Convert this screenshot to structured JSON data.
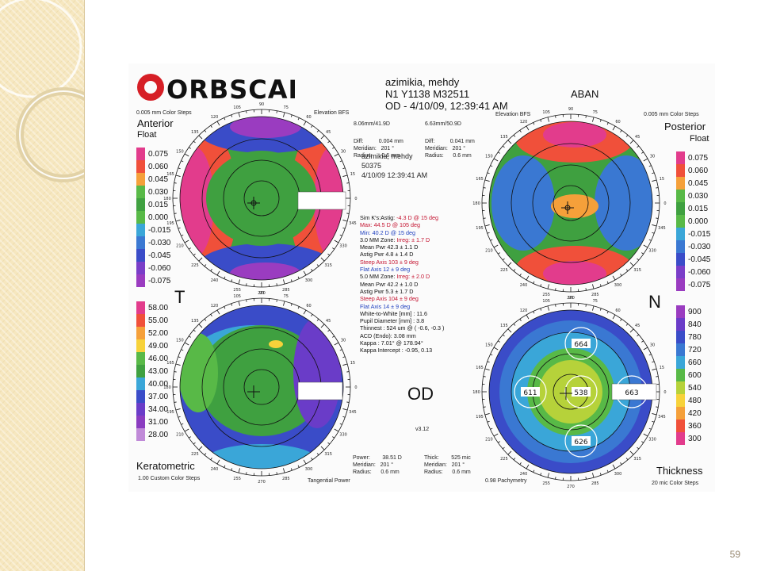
{
  "slide": {
    "page_number": "59"
  },
  "logo": {
    "text": "ORBSCAN"
  },
  "header": {
    "patient_name": "azimikia, mehdy",
    "ids": "N1 Y1138 M32511",
    "exam": "OD - 4/10/09, 12:39:41 AM",
    "site": "ABAN"
  },
  "anterior": {
    "steps": "0.005 mm Color Steps",
    "ref": "Elevation BFS",
    "title": "Anterior",
    "subtitle": "Float",
    "bfs": "8.06mm/41.9D",
    "diff": "Diff:          0.004 mm\nMeridian:   201 °\nRadius:      0.6 mm"
  },
  "posterior": {
    "steps": "0.005 mm Color Steps",
    "ref": "Elevation BFS",
    "title": "Posterior",
    "subtitle": "Float",
    "bfs": "6.63mm/50.9D",
    "diff": "Diff:          0.041 mm\nMeridian:   201 °\nRadius:      0.6 mm"
  },
  "keratometric": {
    "title": "Keratometric",
    "steps": "1.00 Custom Color Steps",
    "map": "Tangential Power",
    "readout": "Power:        38.51 D\nMeridian:   201 °\nRadius:      0.6 mm"
  },
  "thickness": {
    "title": "Thickness",
    "steps": "20 mic Color Steps",
    "map": "0.98 Pachymetry",
    "readout": "Thick:        525 mic\nMeridian:   201 °\nRadius:      0.6 mm",
    "points": {
      "top": "664",
      "left": "611",
      "center": "538",
      "right": "663",
      "bottom": "626"
    }
  },
  "patient_block": {
    "name": "azimikia, mehdy",
    "id": "50375",
    "date": "4/10/09 12:39:41 AM"
  },
  "sim_k": {
    "astig_label": "Sim K's:Astig:",
    "astig": "-4.3 D  @ 15 deg",
    "max_label": "Max:",
    "max": "44.5 D  @ 105 deg",
    "min_label": "Min:",
    "min": "40.2 D  @ 15 deg"
  },
  "zone3": {
    "label": "3.0 MM Zone:",
    "irreg": "Irreg:   ± 1.7 D",
    "mean": "Mean Pwr        42.3    ± 1.1 D",
    "astig": "Astig Pwr         4.8     ± 1.4 D",
    "steep": "Steep Axis        103     ± 9 deg",
    "flat": "Flat Axis          12      ± 9 deg"
  },
  "zone5": {
    "label": "5.0 MM Zone:",
    "irreg": "Irreg:   ± 2.0 D",
    "mean": "Mean Pwr        42.2    ± 1.0 D",
    "astig": "Astig Pwr         5.3     ± 1.7 D",
    "steep": "Steep Axis        104     ± 9 deg",
    "flat": "Flat Axis          14      ± 9 deg"
  },
  "measures": [
    "White-to-White [mm] : 11.6",
    "Pupil Diameter [mm] : 3.8",
    "Thinnest : 524 um @ ( -0.6, -0.3 )",
    "ACD (Endo): 3.08 mm",
    "Kappa : 7.01° @ 178.94°",
    "Kappa Intercept : -0.95, 0.13"
  ],
  "labels": {
    "temporal": "T",
    "nasal": "N",
    "eye": "OD",
    "version": "v3.12"
  },
  "scales": {
    "float_left": [
      "0.075",
      "0.060",
      "0.045",
      "0.030",
      "0.015",
      "0.000",
      "-0.015",
      "-0.030",
      "-0.045",
      "-0.060",
      "-0.075"
    ],
    "float_right": [
      "0.075",
      "0.060",
      "0.045",
      "0.030",
      "0.015",
      "0.000",
      "-0.015",
      "-0.030",
      "-0.045",
      "-0.060",
      "-0.075"
    ],
    "power": [
      "58.00",
      "55.00",
      "52.00",
      "49.00",
      "46.00",
      "43.00",
      "40.00",
      "37.00",
      "34.00",
      "31.00",
      "28.00"
    ],
    "thickness": [
      "900",
      "840",
      "780",
      "720",
      "660",
      "600",
      "540",
      "480",
      "420",
      "360",
      "300"
    ]
  },
  "colors": {
    "float": [
      "#e23c8c",
      "#f0503a",
      "#f5a03a",
      "#58b947",
      "#3fa040",
      "#58b947",
      "#3aa6d8",
      "#3a78d2",
      "#3a4cc8",
      "#7a3ec8",
      "#9a3cc0"
    ],
    "power": [
      "#e23c8c",
      "#f0503a",
      "#f5a03a",
      "#f7d23a",
      "#58b947",
      "#3fa040",
      "#3aa6d8",
      "#3a4cc8",
      "#6a3cc8",
      "#8a3cc0",
      "#c08ad8"
    ],
    "thick": [
      "#9a3cc0",
      "#6a3cc8",
      "#3a4cc8",
      "#3a78d2",
      "#3aa6d8",
      "#58b947",
      "#b6d23a",
      "#f7d23a",
      "#f5a03a",
      "#f0503a",
      "#e23c8c"
    ]
  },
  "ring_labels": [
    "165",
    "180",
    "195",
    "210",
    "225",
    "240",
    "255",
    "270",
    "285",
    "300",
    "315",
    "330",
    "345",
    "0",
    "15",
    "30",
    "45",
    "60",
    "75",
    "90",
    "105",
    "120",
    "135",
    "150"
  ]
}
